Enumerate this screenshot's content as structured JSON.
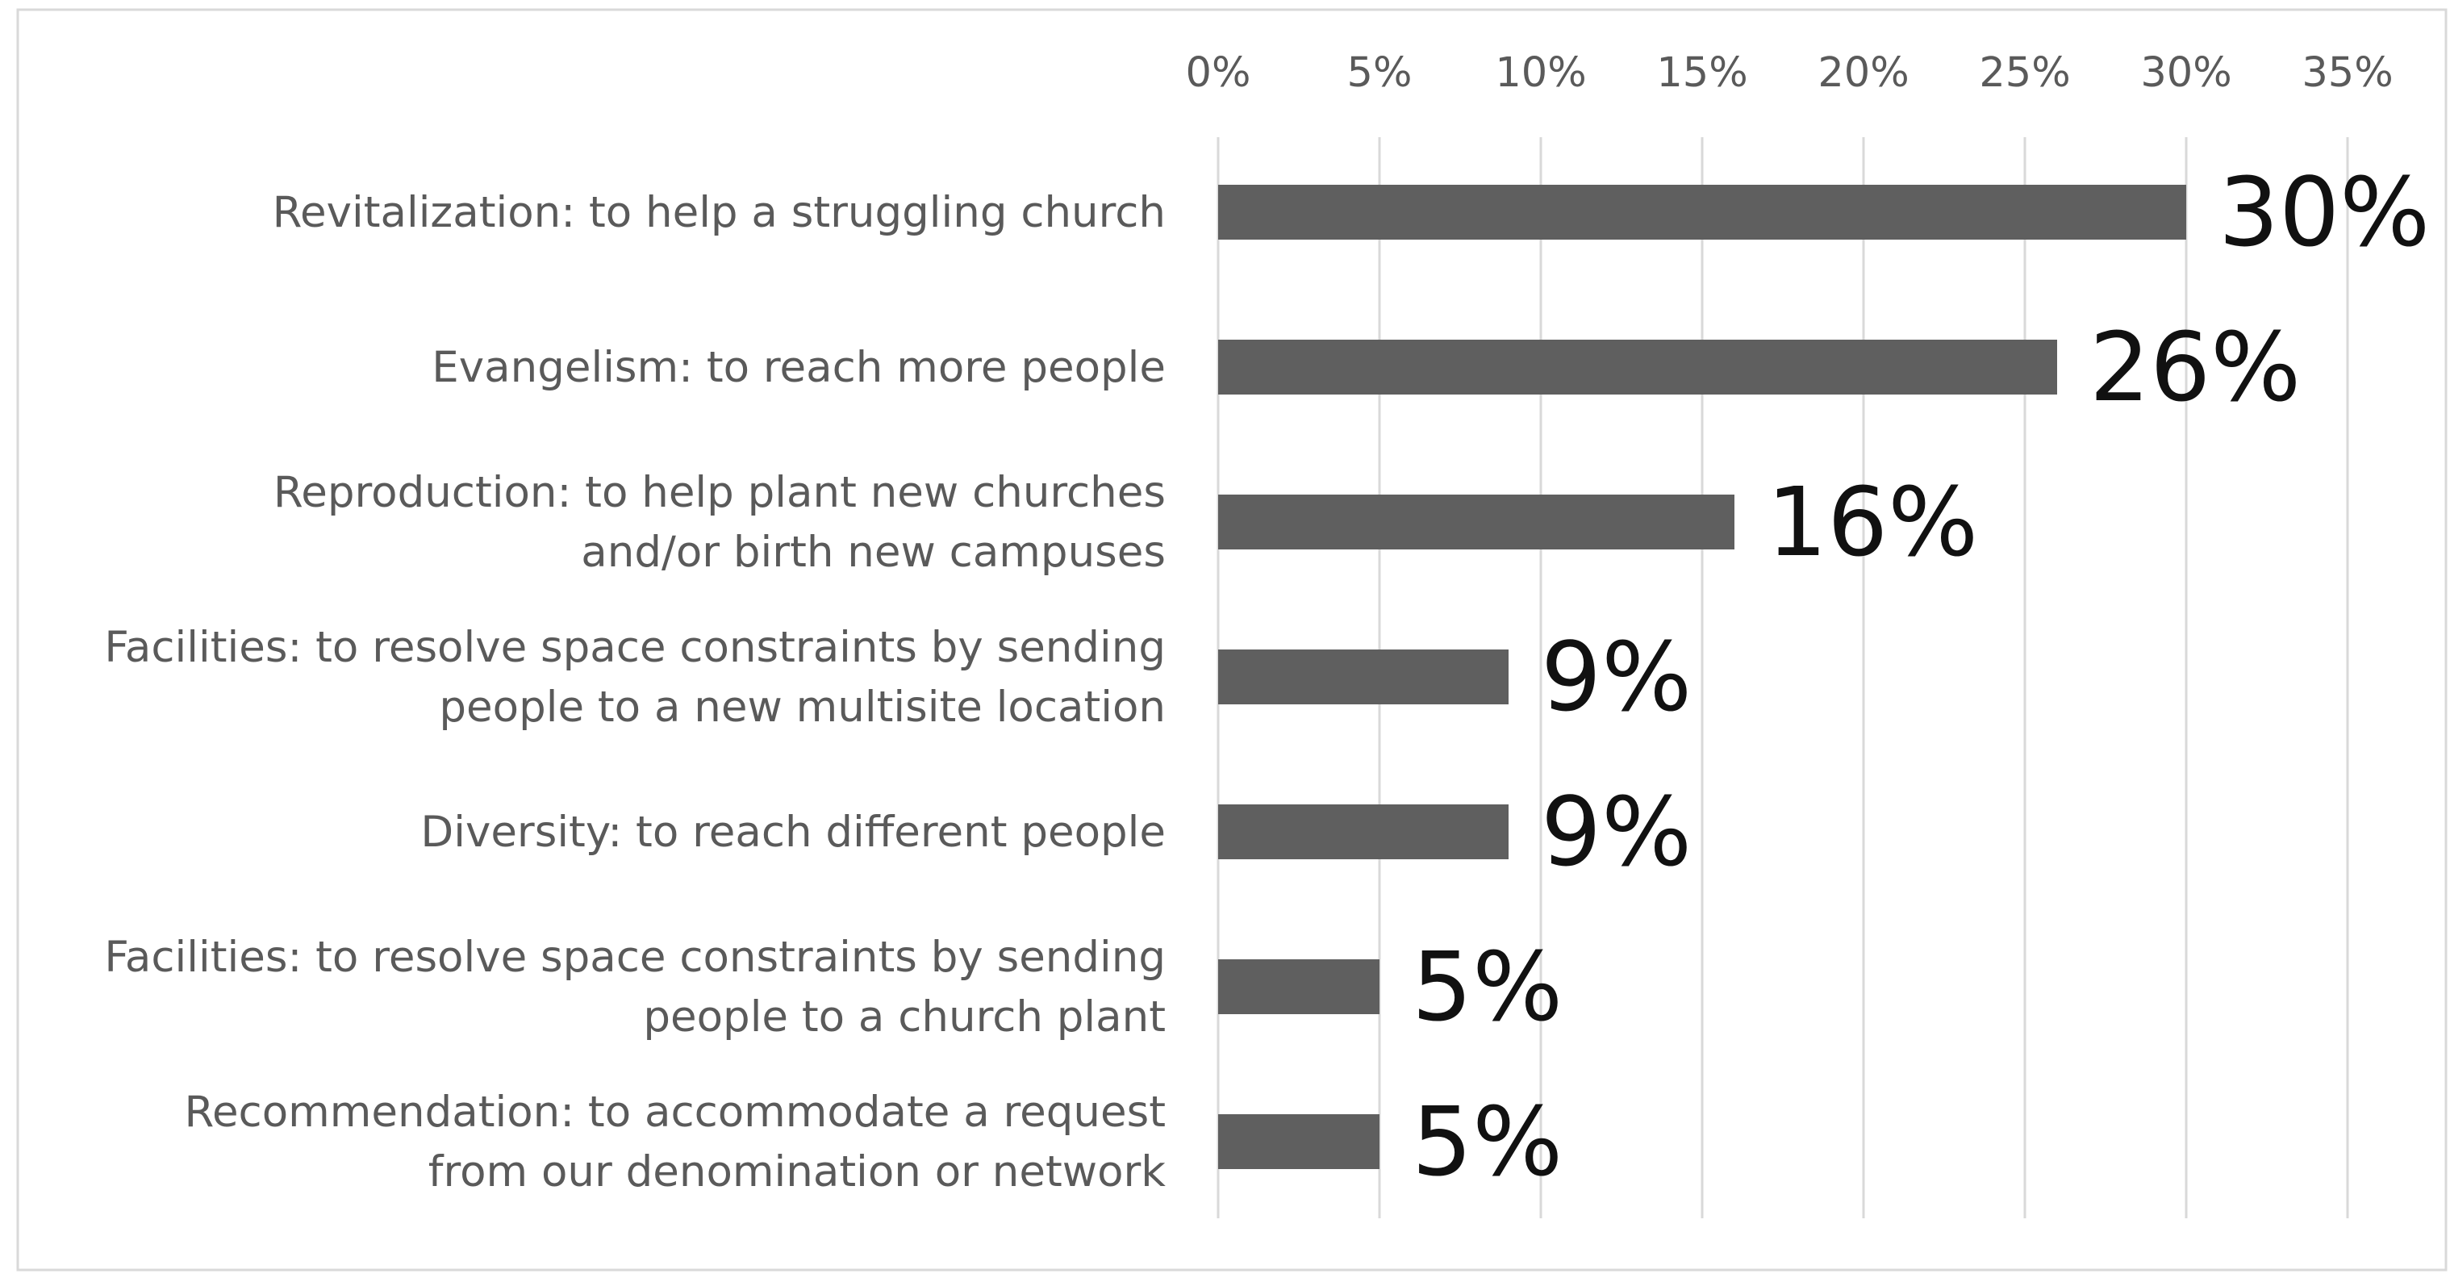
{
  "chart_data": {
    "type": "bar",
    "orientation": "horizontal",
    "categories": [
      "Revitalization: to help a struggling church",
      "Evangelism: to reach more people",
      "Reproduction: to help plant new churches and/or birth new campuses",
      "Facilities: to resolve space constraints by sending people to a new multisite location",
      "Diversity: to reach different people",
      "Facilities: to resolve space constraints by sending people to a church plant",
      "Recommendation: to accommodate a request from our denomination or network"
    ],
    "category_lines": [
      [
        "Revitalization: to help a struggling church"
      ],
      [
        "Evangelism: to reach more people"
      ],
      [
        "Reproduction: to help plant new churches",
        "and/or birth new campuses"
      ],
      [
        "Facilities: to resolve space constraints by sending",
        "people to a new multisite location"
      ],
      [
        "Diversity: to reach different people"
      ],
      [
        "Facilities: to resolve space constraints by sending",
        "people to a church plant"
      ],
      [
        "Recommendation: to accommodate a request",
        "from our denomination or network"
      ]
    ],
    "values": [
      30,
      26,
      16,
      9,
      9,
      5,
      5
    ],
    "data_labels": [
      "30%",
      "26%",
      "16%",
      "9%",
      "9%",
      "5%",
      "5%"
    ],
    "x_ticks": [
      0,
      5,
      10,
      15,
      20,
      25,
      30,
      35
    ],
    "x_tick_labels": [
      "0%",
      "5%",
      "10%",
      "15%",
      "20%",
      "25%",
      "30%",
      "35%"
    ],
    "xlim": [
      0,
      35
    ],
    "x_axis_position": "top",
    "grid": "vertical",
    "legend": "none",
    "title": "",
    "xlabel": "",
    "ylabel": "",
    "colors": {
      "bar": "#5f5f5f",
      "grid": "#d9d9d9",
      "label": "#5a5a5a",
      "data_label": "#111111",
      "border": "#d9d9d9"
    }
  }
}
